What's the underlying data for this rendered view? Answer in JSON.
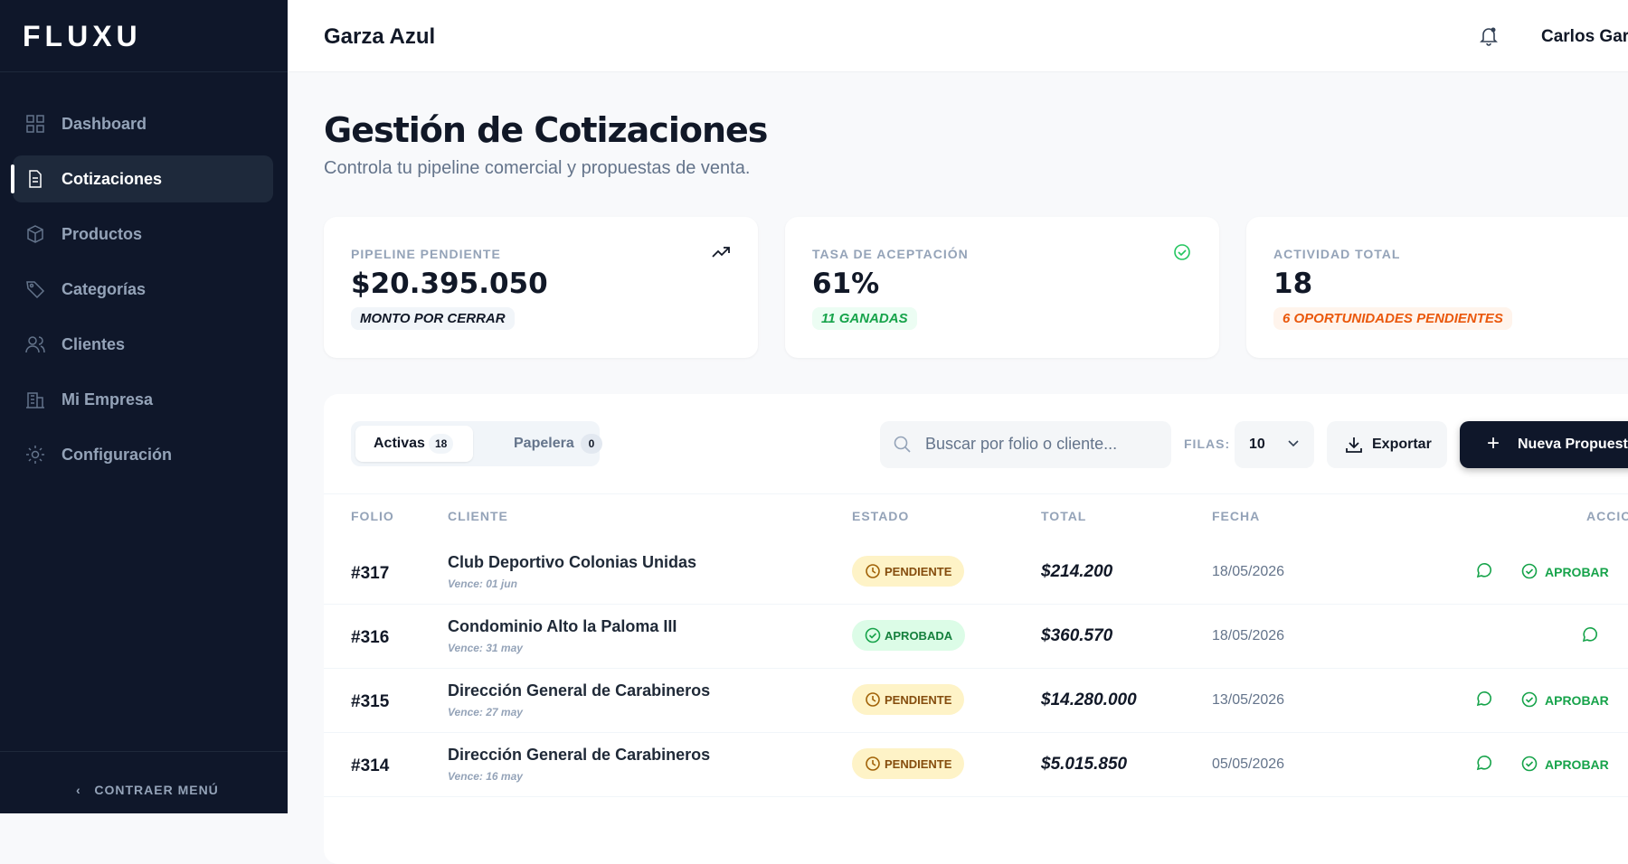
{
  "sidebar": {
    "logo": "FLUXU",
    "nav": [
      "Dashboard",
      "Cotizaciones",
      "Productos",
      "Categorías",
      "Clientes",
      "Mi Empresa",
      "Configuración"
    ],
    "active": 1,
    "collapse": "CONTRAER MENÚ"
  },
  "header": {
    "company": "Garza Azul",
    "user": "Carlos García"
  },
  "page": {
    "title": "Gestión de Cotizaciones",
    "subtitle": "Controla tu pipeline comercial y propuestas de venta."
  },
  "stats": [
    {
      "label": "PIPELINE PENDIENTE",
      "value": "$20.395.050",
      "badge": "MONTO POR CERRAR"
    },
    {
      "label": "TASA DE ACEPTACIÓN",
      "value": "61%",
      "badge": "11 GANADAS"
    },
    {
      "label": "ACTIVIDAD TOTAL",
      "value": "18",
      "badge": "6 OPORTUNIDADES PENDIENTES"
    }
  ],
  "toolbar": {
    "tabs": [
      {
        "label": "Activas",
        "count": 18
      },
      {
        "label": "Papelera",
        "count": 0
      }
    ],
    "search_placeholder": "Buscar por folio o cliente...",
    "rows_label": "FILAS:",
    "rows_value": 10,
    "export": "Exportar",
    "new": "Nueva Propuesta"
  },
  "table": {
    "columns": [
      "FOLIO",
      "CLIENTE",
      "ESTADO",
      "TOTAL",
      "FECHA",
      "ACCIONES"
    ],
    "rows": [
      {
        "folio": "#317",
        "client": "Club Deportivo Colonias Unidas",
        "due": "Vence: 01 jun",
        "status": "PENDIENTE",
        "total": "$214.200",
        "date": "18/05/2026",
        "action": "APROBAR"
      },
      {
        "folio": "#316",
        "client": "Condominio Alto la Paloma III",
        "due": "Vence: 31 may",
        "status": "APROBADA",
        "total": "$360.570",
        "date": "18/05/2026"
      },
      {
        "folio": "#315",
        "client": "Dirección General de Carabineros",
        "due": "Vence: 27 may",
        "status": "PENDIENTE",
        "total": "$14.280.000",
        "date": "13/05/2026",
        "action": "APROBAR"
      },
      {
        "folio": "#314",
        "client": "Dirección General de Carabineros",
        "due": "Vence: 16 may",
        "status": "PENDIENTE",
        "total": "$5.015.850",
        "date": "05/05/2026",
        "action": "APROBAR"
      }
    ]
  }
}
